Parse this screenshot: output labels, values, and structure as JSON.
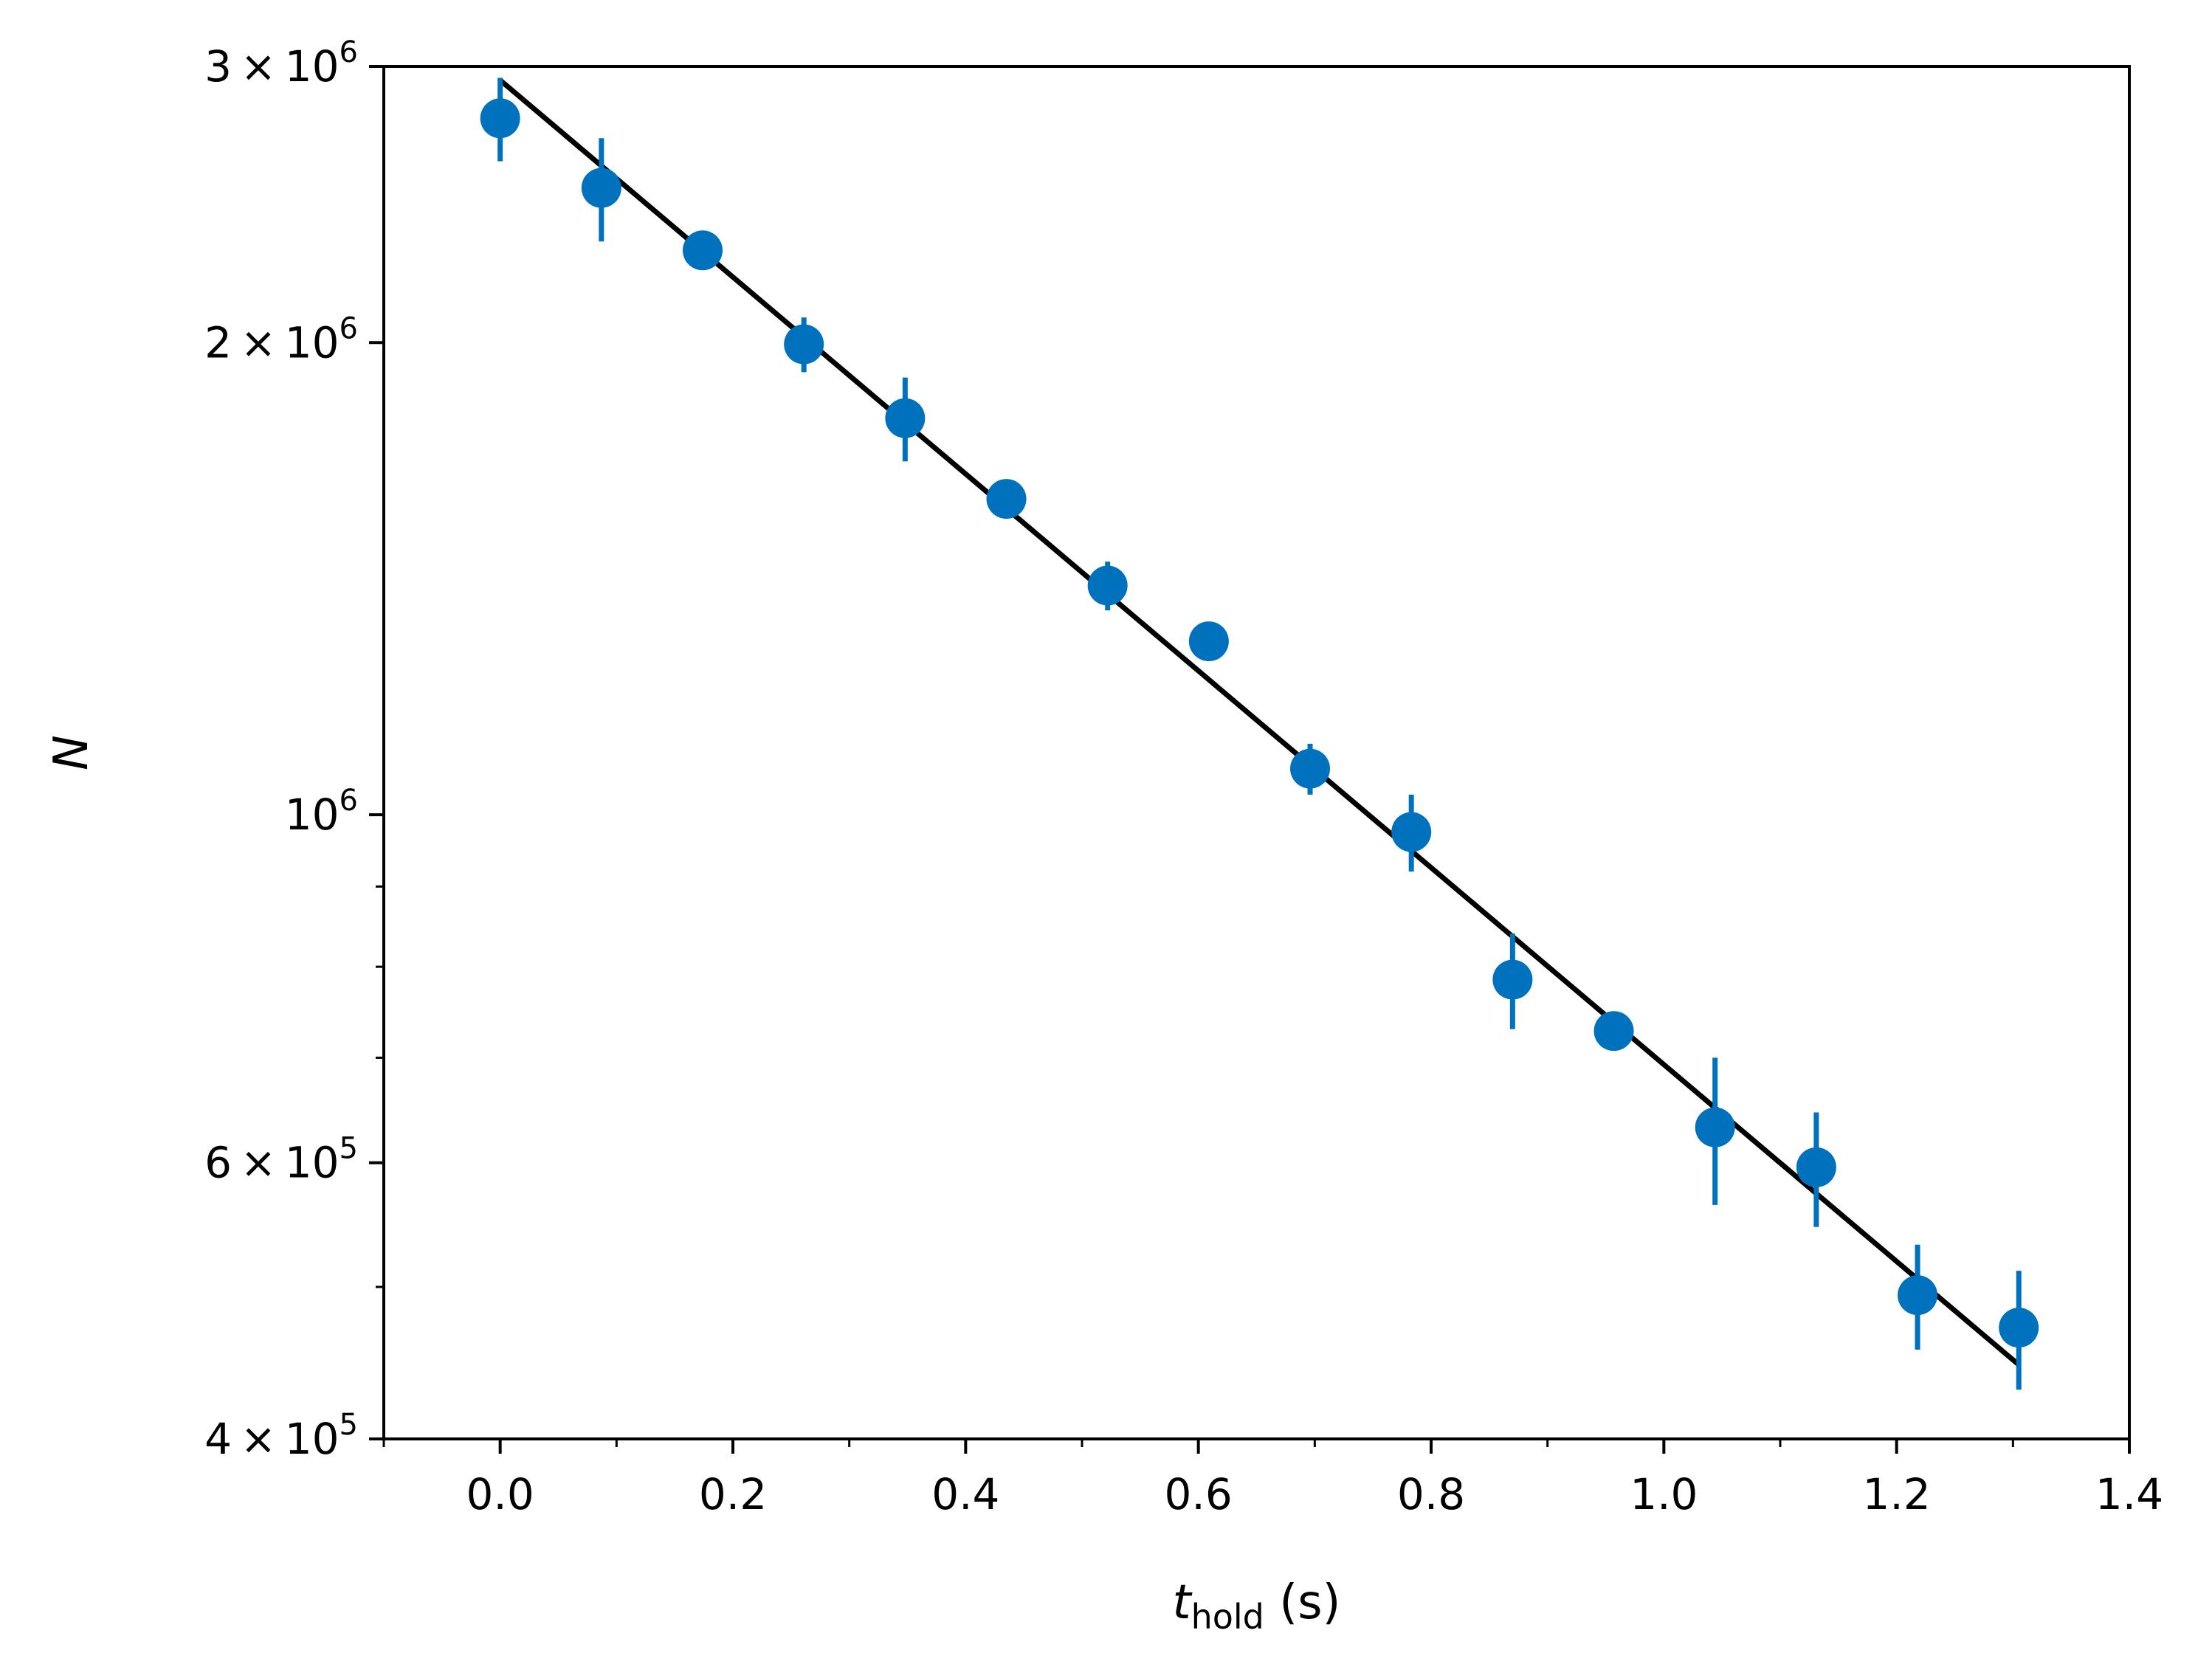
{
  "chart_data": {
    "type": "scatter",
    "title": "",
    "xlabel": {
      "main": "t",
      "sub": "hold",
      "unit": " (s)"
    },
    "ylabel": "N",
    "xlim": [
      -0.1,
      1.4
    ],
    "ylim": [
      400000,
      3000000
    ],
    "yscale": "log",
    "grid": false,
    "x_ticks": [
      {
        "value": 0.0,
        "label": "0.0"
      },
      {
        "value": 0.2,
        "label": "0.2"
      },
      {
        "value": 0.4,
        "label": "0.4"
      },
      {
        "value": 0.6,
        "label": "0.6"
      },
      {
        "value": 0.8,
        "label": "0.8"
      },
      {
        "value": 1.0,
        "label": "1.0"
      },
      {
        "value": 1.2,
        "label": "1.2"
      },
      {
        "value": 1.4,
        "label": "1.4"
      }
    ],
    "x_minor_ticks": [
      -0.1,
      0.1,
      0.3,
      0.5,
      0.7,
      0.9,
      1.1,
      1.3
    ],
    "y_ticks": [
      {
        "value": 3000000,
        "mant": "3",
        "exp": "6"
      },
      {
        "value": 2000000,
        "mant": "2",
        "exp": "6"
      },
      {
        "value": 1000000,
        "mant": "",
        "exp": "6"
      },
      {
        "value": 600000,
        "mant": "6",
        "exp": "5"
      },
      {
        "value": 400000,
        "mant": "4",
        "exp": "5"
      }
    ],
    "y_minor_ticks": [
      500000,
      700000,
      800000,
      900000
    ],
    "series": [
      {
        "type": "scatter",
        "color": "#0072bd",
        "points": [
          {
            "x": 0.0,
            "y": 2780000,
            "yerr": 170000
          },
          {
            "x": 0.087,
            "y": 2510000,
            "yerr": 190000
          },
          {
            "x": 0.174,
            "y": 2290000,
            "yerr": 40000
          },
          {
            "x": 0.261,
            "y": 1995000,
            "yerr": 80000
          },
          {
            "x": 0.348,
            "y": 1790000,
            "yerr": 110000
          },
          {
            "x": 0.435,
            "y": 1590000,
            "yerr": 20000
          },
          {
            "x": 0.522,
            "y": 1400000,
            "yerr": 50000
          },
          {
            "x": 0.609,
            "y": 1290000,
            "yerr": 20000
          },
          {
            "x": 0.696,
            "y": 1070000,
            "yerr": 40000
          },
          {
            "x": 0.783,
            "y": 975000,
            "yerr": 55000
          },
          {
            "x": 0.87,
            "y": 785000,
            "yerr": 55000
          },
          {
            "x": 0.957,
            "y": 728000,
            "yerr": 10000
          },
          {
            "x": 1.044,
            "y": 632000,
            "yerr": 68000
          },
          {
            "x": 1.131,
            "y": 596000,
            "yerr": 50000
          },
          {
            "x": 1.218,
            "y": 494000,
            "yerr": 38000
          },
          {
            "x": 1.305,
            "y": 471000,
            "yerr": 41000
          }
        ]
      },
      {
        "type": "line",
        "color": "#000000",
        "x": [
          0.0,
          1.305
        ],
        "y": [
          2940000,
          446000
        ]
      }
    ]
  }
}
